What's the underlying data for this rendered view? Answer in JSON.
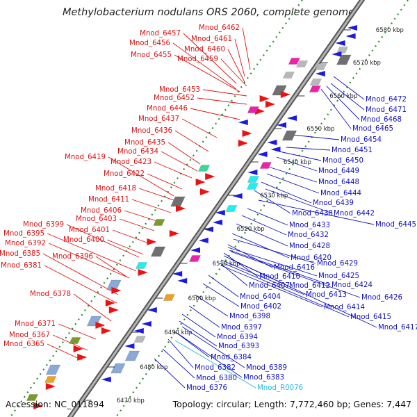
{
  "title": "Methylobacterium nodulans ORS 2060, complete genome",
  "footer": {
    "accession": "Accession: NC_011894",
    "topology": "Topology: circular; Length: 7,772,460 bp; Genes: 7,447"
  },
  "colors": {
    "forward_label": "#e01010",
    "reverse_label": "#1010c0",
    "rna_label": "#20b8e0",
    "backbone": "#888888",
    "tick": "#2a8a2a"
  },
  "kbp_ticks": [
    "6580 kbp",
    "6570 kbp",
    "6560 kbp",
    "6550 kbp",
    "6540 kbp",
    "6530 kbp",
    "6520 kbp",
    "6510 kbp",
    "6500 kbp",
    "6490 kbp",
    "6480 kbp",
    "6470 kbp"
  ],
  "left_labels": [
    "Mnod_6462",
    "Mnod_6457",
    "Mnod_6461",
    "Mnod_6456",
    "Mnod_6460",
    "Mnod_6455",
    "Mnod_6459",
    "Mnod_6453",
    "Mnod_6452",
    "Mnod_6446",
    "Mnod_6437",
    "Mnod_6436",
    "Mnod_6435",
    "Mnod_6434",
    "Mnod_6419",
    "Mnod_6423",
    "Mnod_6422",
    "Mnod_6418",
    "Mnod_6411",
    "Mnod_6406",
    "Mnod_6403",
    "Mnod_6399",
    "Mnod_6401",
    "Mnod_6395",
    "Mnod_6400",
    "Mnod_6392",
    "Mnod_6396",
    "Mnod_6385",
    "Mnod_6381",
    "Mnod_6378",
    "Mnod_6371",
    "Mnod_6367",
    "Mnod_6365"
  ],
  "right_labels": [
    "Mnod_6472",
    "Mnod_6471",
    "Mnod_6468",
    "Mnod_6465",
    "Mnod_6454",
    "Mnod_6451",
    "Mnod_6450",
    "Mnod_6449",
    "Mnod_6448",
    "Mnod_6444",
    "Mnod_6439",
    "Mnod_6438",
    "Mnod_6442",
    "Mnod_6445",
    "Mnod_6433",
    "Mnod_6432",
    "Mnod_6428",
    "Mnod_6420",
    "Mnod_6429",
    "Mnod_6416",
    "Mnod_6410",
    "Mnod_6425",
    "Mnod_6407",
    "Mnod_6412",
    "Mnod_6424",
    "Mnod_6413",
    "Mnod_6426",
    "Mnod_6404",
    "Mnod_6414",
    "Mnod_6402",
    "Mnod_6415",
    "Mnod_6398",
    "Mnod_6417",
    "Mnod_6397",
    "Mnod_6394",
    "Mnod_6393",
    "Mnod_6384",
    "Mnod_6389",
    "Mnod_6382",
    "Mnod_6383",
    "Mnod_6380",
    "Mnod_R0076",
    "Mnod_6376"
  ],
  "rna_labels": [
    "Mnod_R0076"
  ]
}
